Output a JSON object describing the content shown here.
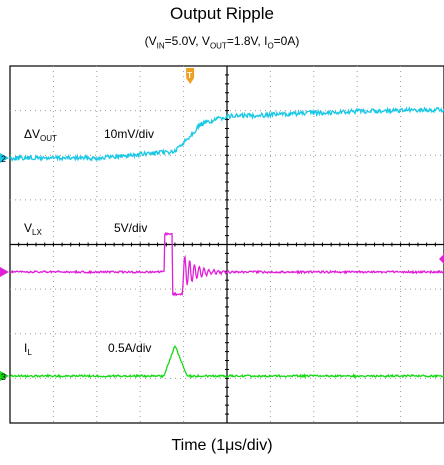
{
  "title": "Output Ripple",
  "conditions": {
    "vin_label": "V",
    "vin_sub": "IN",
    "vin_value": "=5.0V, ",
    "vout_label": "V",
    "vout_sub": "OUT",
    "vout_value": "=1.8V, ",
    "io_label": "I",
    "io_sub": "O",
    "io_value": "=0A"
  },
  "xlabel": "Time (1μs/div)",
  "chart_data": {
    "type": "line",
    "title": "Output Ripple",
    "xlabel": "Time (1μs/div)",
    "x_unit": "μs",
    "divisions": {
      "x": 10,
      "y": 8
    },
    "grid": true,
    "trigger_marker": "T",
    "series": [
      {
        "name": "ΔVOUT",
        "label_main": "ΔV",
        "label_sub": "OUT",
        "scale": "10mV/div",
        "color": "#19c8e6",
        "channel": "2",
        "x": [
          0,
          2.0,
          3.8,
          4.4,
          5.0,
          6.0,
          8.0,
          10.0
        ],
        "y": [
          0.0,
          0.0,
          0.2,
          1.05,
          1.3,
          1.35,
          1.45,
          1.5
        ],
        "y_unit": "div"
      },
      {
        "name": "VLX",
        "label_main": "V",
        "label_sub": "LX",
        "scale": "5V/div",
        "color": "#e020d8",
        "channel": "",
        "x": [
          0,
          3.55,
          3.56,
          3.74,
          3.75,
          3.98,
          3.99,
          10.0
        ],
        "y": [
          0.0,
          0.0,
          0.95,
          0.95,
          -0.55,
          -0.55,
          0.0,
          0.0
        ],
        "ringing_start": 4.0,
        "y_unit": "div"
      },
      {
        "name": "IL",
        "label_main": "I",
        "label_sub": "L",
        "scale": "0.5A/div",
        "color": "#18d818",
        "channel": "3",
        "x": [
          0,
          3.55,
          3.8,
          4.08,
          4.1,
          10.0
        ],
        "y": [
          0.0,
          0.0,
          0.95,
          0.0,
          0.0,
          0.0
        ],
        "y_unit": "div"
      }
    ]
  }
}
